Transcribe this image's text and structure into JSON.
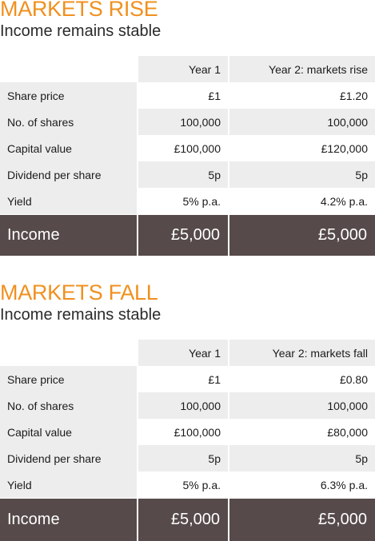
{
  "colors": {
    "accent": "#f0901e",
    "row_shade": "#eeedee",
    "income_bg": "#564a4a",
    "income_text": "#ffffff"
  },
  "tables": [
    {
      "title": "MARKETS RISE",
      "subtitle": "Income remains stable",
      "columns": [
        "Year 1",
        "Year 2: markets rise"
      ],
      "rows": [
        {
          "label": "Share price",
          "year1": "£1",
          "year2": "£1.20"
        },
        {
          "label": "No. of shares",
          "year1": "100,000",
          "year2": "100,000"
        },
        {
          "label": "Capital value",
          "year1": "£100,000",
          "year2": "£120,000"
        },
        {
          "label": "Dividend per share",
          "year1": "5p",
          "year2": "5p"
        },
        {
          "label": "Yield",
          "year1": "5% p.a.",
          "year2": "4.2% p.a."
        }
      ],
      "income": {
        "label": "Income",
        "year1": "£5,000",
        "year2": "£5,000"
      }
    },
    {
      "title": "MARKETS FALL",
      "subtitle": "Income remains stable",
      "columns": [
        "Year 1",
        "Year 2: markets fall"
      ],
      "rows": [
        {
          "label": "Share price",
          "year1": "£1",
          "year2": "£0.80"
        },
        {
          "label": "No. of shares",
          "year1": "100,000",
          "year2": "100,000"
        },
        {
          "label": "Capital value",
          "year1": "£100,000",
          "year2": "£80,000"
        },
        {
          "label": "Dividend per share",
          "year1": "5p",
          "year2": "5p"
        },
        {
          "label": "Yield",
          "year1": "5% p.a.",
          "year2": "6.3% p.a."
        }
      ],
      "income": {
        "label": "Income",
        "year1": "£5,000",
        "year2": "£5,000"
      }
    }
  ]
}
